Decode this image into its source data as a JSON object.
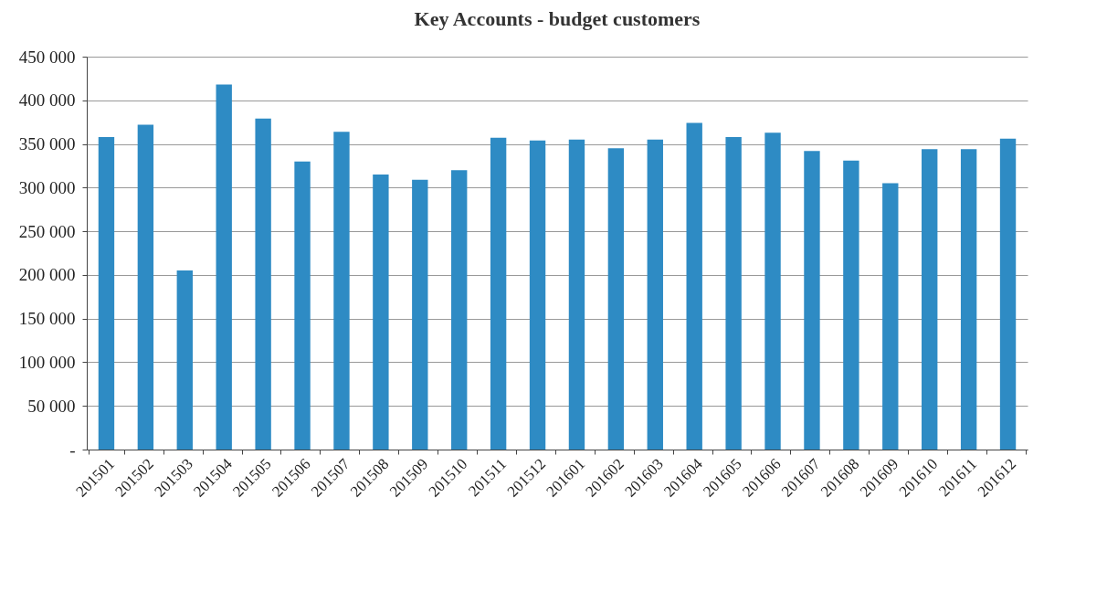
{
  "chart_data": {
    "type": "bar",
    "title": "Key Accounts  - budget customers",
    "categories": [
      "201501",
      "201502",
      "201503",
      "201504",
      "201505",
      "201506",
      "201507",
      "201508",
      "201509",
      "201510",
      "201511",
      "201512",
      "201601",
      "201602",
      "201603",
      "201604",
      "201605",
      "201606",
      "201607",
      "201608",
      "201609",
      "201610",
      "201611",
      "201612"
    ],
    "values": [
      358000,
      372000,
      205000,
      418000,
      379000,
      330000,
      364000,
      315000,
      309000,
      320000,
      357000,
      354000,
      355000,
      345000,
      355000,
      374000,
      358000,
      363000,
      342000,
      331000,
      305000,
      344000,
      344000,
      356000
    ],
    "color": "#2e8bc4",
    "ylim": [
      0,
      450000
    ],
    "yticks": [
      {
        "value": 0,
        "label": "-"
      },
      {
        "value": 50000,
        "label": "50 000"
      },
      {
        "value": 100000,
        "label": "100 000"
      },
      {
        "value": 150000,
        "label": "150 000"
      },
      {
        "value": 200000,
        "label": "200 000"
      },
      {
        "value": 250000,
        "label": "250 000"
      },
      {
        "value": 300000,
        "label": "300 000"
      },
      {
        "value": 350000,
        "label": "350 000"
      },
      {
        "value": 400000,
        "label": "400 000"
      },
      {
        "value": 450000,
        "label": "450 000"
      }
    ],
    "grid": "y"
  }
}
